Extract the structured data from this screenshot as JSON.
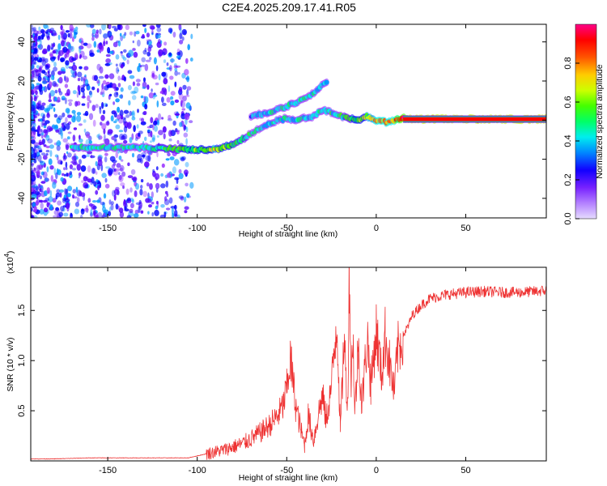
{
  "title": "C2E4.2025.209.17.41.R05",
  "colors": {
    "snr_line": "#ee3333",
    "ridge_line": "#7700cc",
    "colormap": [
      "#c8a4ff",
      "#9933ff",
      "#5500ff",
      "#0000ff",
      "#0099ff",
      "#00eeee",
      "#00ff66",
      "#44ff00",
      "#ccff00",
      "#ffcc00",
      "#ff5500",
      "#ff0000",
      "#ff0088"
    ]
  },
  "chart_data": [
    {
      "type": "heatmap",
      "xlabel": "Height of straight line (km)",
      "ylabel": "Frequency (Hz)",
      "xlim": [
        -193,
        95
      ],
      "ylim": [
        -50,
        49
      ],
      "xticks": [
        -150,
        -100,
        -50,
        0,
        50
      ],
      "yticks": [
        -40,
        -20,
        0,
        20,
        40
      ],
      "colorbar": {
        "label": "Normalized spectral amplitude",
        "range": [
          0,
          1
        ],
        "ticks": [
          "0.0",
          "0.2",
          "0.4",
          "0.6",
          "0.8"
        ],
        "tick_values": [
          0,
          0.2,
          0.4,
          0.6,
          0.8
        ]
      },
      "ridge_main": {
        "x": [
          -170,
          -150,
          -130,
          -110,
          -100,
          -90,
          -85,
          -80,
          -75,
          -70,
          -65,
          -60,
          -55,
          -50,
          -45,
          -40,
          -35,
          -30,
          -25,
          -20,
          -15,
          -10,
          -5,
          0,
          5,
          10,
          15,
          20,
          40,
          60,
          80,
          95
        ],
        "y": [
          -14,
          -14,
          -14,
          -15,
          -15,
          -15,
          -14,
          -12,
          -10,
          -7,
          -4,
          -2,
          0,
          1,
          0,
          1,
          2,
          5,
          4,
          2,
          1,
          0,
          2,
          0,
          -1,
          0,
          1,
          0.5,
          0.5,
          0.5,
          0.5,
          0.5
        ],
        "amplitude": [
          0.4,
          0.45,
          0.45,
          0.55,
          0.6,
          0.65,
          0.6,
          0.55,
          0.5,
          0.45,
          0.4,
          0.4,
          0.4,
          0.45,
          0.4,
          0.4,
          0.4,
          0.45,
          0.45,
          0.45,
          0.55,
          0.6,
          0.65,
          0.75,
          0.75,
          0.8,
          0.95,
          1.0,
          1.0,
          1.0,
          1.0,
          1.0
        ]
      },
      "ridge_upper": {
        "x": [
          -70,
          -60,
          -50,
          -45,
          -40,
          -35,
          -30,
          -27
        ],
        "y": [
          2,
          4,
          7,
          9,
          11,
          14,
          18,
          20
        ],
        "amplitude": [
          0.35,
          0.4,
          0.4,
          0.4,
          0.4,
          0.4,
          0.35,
          0.3
        ]
      }
    },
    {
      "type": "line",
      "xlabel": "Height of straight line (km)",
      "ylabel": "SNR (10 * v/v)",
      "yscale_label": "(x10",
      "yscale_exp": "4",
      "xlim": [
        -193,
        95
      ],
      "ylim": [
        0,
        1.93
      ],
      "xticks": [
        -150,
        -100,
        -50,
        0,
        50
      ],
      "yticks": [
        0.5,
        1.0,
        1.5
      ],
      "ytick_labels": [
        "0.5",
        "1.0",
        "1.5"
      ],
      "series": [
        {
          "x": [
            -193,
            -180,
            -160,
            -140,
            -120,
            -105,
            -100,
            -95,
            -90,
            -85,
            -80,
            -75,
            -70,
            -65,
            -60,
            -55,
            -52,
            -50,
            -48,
            -45,
            -42,
            -40,
            -38,
            -35,
            -32,
            -30,
            -28,
            -25,
            -22,
            -20,
            -18,
            -16,
            -15,
            -14,
            -13,
            -12,
            -10,
            -8,
            -5,
            -3,
            0,
            3,
            5,
            7,
            10,
            12,
            15,
            18,
            20,
            25,
            30,
            40,
            50,
            60,
            70,
            80,
            90,
            95
          ],
          "y": [
            0.02,
            0.02,
            0.03,
            0.03,
            0.03,
            0.03,
            0.05,
            0.07,
            0.09,
            0.11,
            0.14,
            0.17,
            0.22,
            0.28,
            0.35,
            0.45,
            0.55,
            0.72,
            1.02,
            0.55,
            0.3,
            0.15,
            0.45,
            0.2,
            0.5,
            0.65,
            0.4,
            0.75,
            1.42,
            0.3,
            1.22,
            0.55,
            1.93,
            0.75,
            1.3,
            0.45,
            1.15,
            0.55,
            1.25,
            0.75,
            1.3,
            0.85,
            1.25,
            1.02,
            0.68,
            1.1,
            1.25,
            1.35,
            1.45,
            1.55,
            1.62,
            1.66,
            1.68,
            1.69,
            1.68,
            1.68,
            1.69,
            1.7
          ]
        }
      ]
    }
  ]
}
